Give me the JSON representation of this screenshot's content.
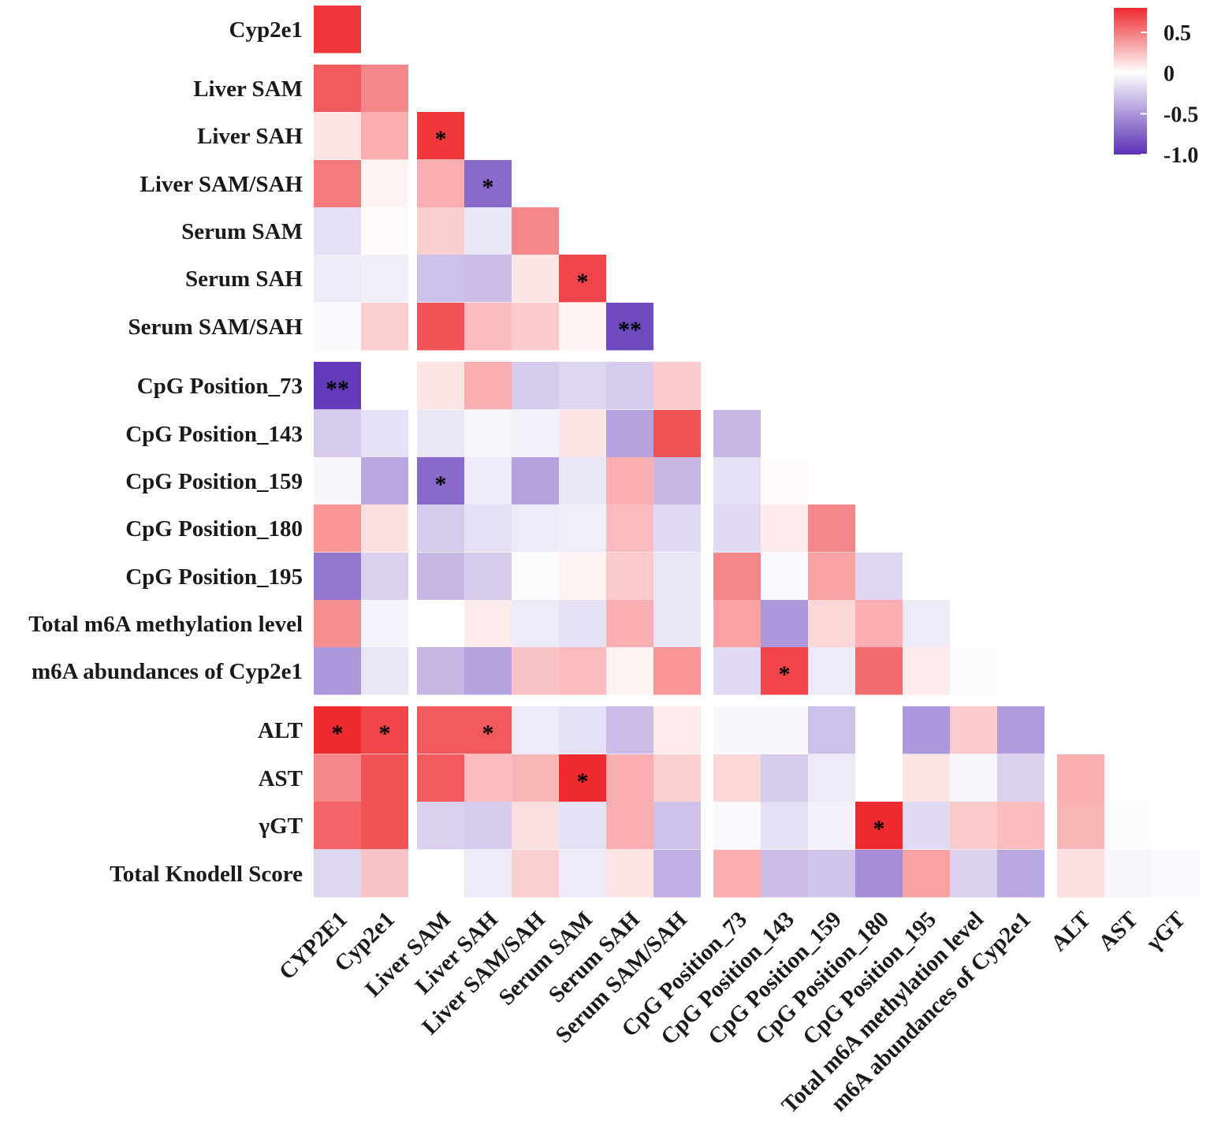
{
  "chart_data": {
    "type": "heatmap",
    "title": "",
    "rows": [
      "Cyp2e1",
      "Liver SAM",
      "Liver SAH",
      "Liver SAM/SAH",
      "Serum SAM",
      "Serum SAH",
      "Serum SAM/SAH",
      "CpG Position_73",
      "CpG Position_143",
      "CpG Position_159",
      "CpG Position_180",
      "CpG Position_195",
      "Total m6A methylation level",
      "m6A abundances of Cyp2e1",
      "ALT",
      "AST",
      "γGT",
      "Total Knodell Score"
    ],
    "columns": [
      "CYP2E1",
      "Cyp2e1",
      "Liver SAM",
      "Liver SAH",
      "Liver SAM/SAH",
      "Serum SAM",
      "Serum SAH",
      "Serum SAM/SAH",
      "CpG Position_73",
      "CpG Position_143",
      "CpG Position_159",
      "CpG Position_180",
      "CpG Position_195",
      "Total m6A methylation level",
      "m6A abundances of Cyp2e1",
      "ALT",
      "AST",
      "γGT"
    ],
    "values": [
      [
        0.75
      ],
      [
        0.62,
        0.45
      ],
      [
        0.1,
        0.3,
        0.75
      ],
      [
        0.5,
        0.05,
        0.3,
        -0.72
      ],
      [
        -0.15,
        0.02,
        0.18,
        -0.12,
        0.45
      ],
      [
        -0.1,
        -0.08,
        -0.3,
        -0.32,
        0.1,
        0.7
      ],
      [
        -0.03,
        0.18,
        0.65,
        0.25,
        0.2,
        0.05,
        -0.88
      ],
      [
        -0.95,
        0.0,
        0.1,
        0.3,
        -0.25,
        -0.2,
        -0.25,
        0.2
      ],
      [
        -0.25,
        -0.15,
        -0.12,
        -0.05,
        -0.07,
        0.1,
        -0.45,
        0.65,
        -0.35
      ],
      [
        -0.04,
        -0.42,
        -0.72,
        -0.1,
        -0.45,
        -0.12,
        0.3,
        -0.35,
        -0.15,
        0.02
      ],
      [
        0.4,
        0.12,
        -0.25,
        -0.15,
        -0.1,
        -0.08,
        0.25,
        -0.18,
        -0.18,
        0.08,
        0.45
      ],
      [
        -0.65,
        -0.22,
        -0.35,
        -0.25,
        -0.02,
        0.05,
        0.2,
        -0.12,
        0.45,
        -0.03,
        0.35,
        -0.2
      ],
      [
        0.42,
        -0.06,
        0.0,
        0.08,
        -0.1,
        -0.15,
        0.3,
        -0.12,
        0.35,
        -0.5,
        0.15,
        0.3,
        -0.1
      ],
      [
        -0.5,
        -0.12,
        -0.35,
        -0.45,
        0.22,
        0.25,
        0.05,
        0.4,
        -0.18,
        0.7,
        -0.1,
        0.55,
        0.07,
        -0.02
      ],
      [
        0.9,
        0.7,
        0.62,
        0.62,
        -0.1,
        -0.15,
        -0.32,
        0.08,
        -0.04,
        -0.04,
        -0.3,
        0.0,
        -0.5,
        0.2,
        -0.48
      ],
      [
        0.45,
        0.65,
        0.62,
        0.25,
        0.28,
        0.8,
        0.3,
        0.18,
        0.15,
        -0.25,
        -0.1,
        0.0,
        0.1,
        -0.05,
        -0.22,
        0.3
      ],
      [
        0.58,
        0.65,
        -0.22,
        -0.25,
        0.12,
        -0.15,
        0.3,
        -0.3,
        -0.03,
        -0.15,
        -0.07,
        0.82,
        -0.18,
        0.2,
        0.25,
        0.28,
        -0.02
      ],
      [
        -0.2,
        0.22,
        0.0,
        -0.1,
        0.18,
        -0.1,
        0.1,
        -0.38,
        0.3,
        -0.32,
        -0.28,
        -0.55,
        0.35,
        -0.22,
        -0.42,
        0.12,
        -0.05,
        -0.03
      ]
    ],
    "significance": [
      {
        "row": 2,
        "col": 2,
        "mark": "*"
      },
      {
        "row": 3,
        "col": 3,
        "mark": "*"
      },
      {
        "row": 5,
        "col": 5,
        "mark": "*"
      },
      {
        "row": 6,
        "col": 6,
        "mark": "**"
      },
      {
        "row": 7,
        "col": 0,
        "mark": "**"
      },
      {
        "row": 9,
        "col": 2,
        "mark": "*"
      },
      {
        "row": 13,
        "col": 9,
        "mark": "*"
      },
      {
        "row": 14,
        "col": 0,
        "mark": "*"
      },
      {
        "row": 14,
        "col": 1,
        "mark": "*"
      },
      {
        "row": 14,
        "col": 3,
        "mark": "*"
      },
      {
        "row": 15,
        "col": 5,
        "mark": "*"
      },
      {
        "row": 16,
        "col": 11,
        "mark": "*"
      }
    ],
    "colorbar": {
      "ticks": [
        "0.5",
        "0",
        "-0.5",
        "-1.0"
      ],
      "tick_values": [
        0.5,
        0,
        -0.5,
        -1.0
      ],
      "range": [
        -1.0,
        0.8
      ],
      "colors": {
        "high": "#ee2a2f",
        "mid": "#ffffff",
        "low": "#5b30b6"
      }
    },
    "legend_position": "top-right"
  }
}
